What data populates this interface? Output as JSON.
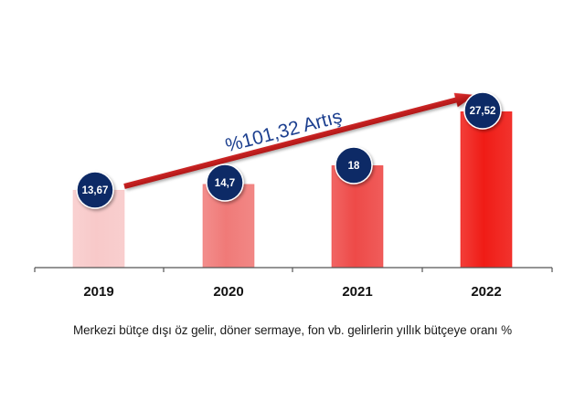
{
  "chart_data": {
    "type": "bar",
    "categories": [
      "2019",
      "2020",
      "2021",
      "2022"
    ],
    "values": [
      13.67,
      14.7,
      18,
      27.52
    ],
    "value_labels": [
      "13,67",
      "14,7",
      "18",
      "27,52"
    ],
    "ylim": [
      0,
      30
    ],
    "grid": false,
    "legend": "none",
    "annotation": "%101,32 Artış",
    "caption": "Merkezi bütçe dışı öz gelir, döner sermaye, fon vb. gelirlerin yıllık bütçeye oranı %"
  },
  "colors": {
    "bars": [
      "#f8c9c9",
      "#f07a78",
      "#ee4a48",
      "#f01c16"
    ],
    "label_badge": "#0f2a66",
    "badge_text": "#ffffff",
    "arrow": "#cc1414",
    "annotation_text": "#1c3f8f",
    "axis": "#555555",
    "tick_label": "#111111"
  }
}
